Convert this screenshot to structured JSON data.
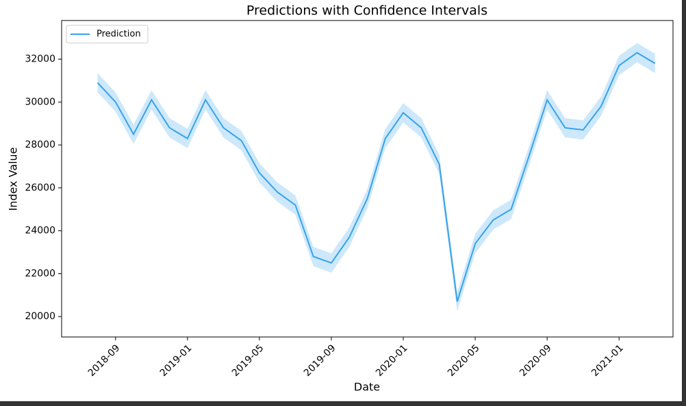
{
  "chart_data": {
    "type": "line",
    "title": "Predictions with Confidence Intervals",
    "x_label": "Date",
    "y_label": "Index Value",
    "x": [
      "2018-08",
      "2018-09",
      "2018-10",
      "2018-11",
      "2018-12",
      "2019-01",
      "2019-02",
      "2019-03",
      "2019-04",
      "2019-05",
      "2019-06",
      "2019-07",
      "2019-08",
      "2019-09",
      "2019-10",
      "2019-11",
      "2019-12",
      "2020-01",
      "2020-02",
      "2020-03",
      "2020-04",
      "2020-05",
      "2020-06",
      "2020-07",
      "2020-08",
      "2020-09",
      "2020-10",
      "2020-11",
      "2020-12",
      "2021-01",
      "2021-02",
      "2021-03"
    ],
    "series": [
      {
        "name": "Prediction",
        "color": "#36a2eb",
        "values": [
          30900,
          30000,
          28500,
          30100,
          28800,
          28300,
          30100,
          28800,
          28200,
          26700,
          25800,
          25200,
          22800,
          22500,
          23700,
          25500,
          28300,
          29500,
          28800,
          27100,
          20700,
          23400,
          24500,
          25000,
          27500,
          30100,
          28800,
          28700,
          29800,
          31700,
          32300,
          31800
        ],
        "ci_lower": [
          30450,
          29550,
          28050,
          29650,
          28350,
          27850,
          29650,
          28350,
          27750,
          26250,
          25350,
          24750,
          22350,
          22050,
          23250,
          25050,
          27850,
          29050,
          28350,
          26650,
          20250,
          22950,
          24050,
          24550,
          27050,
          29650,
          28350,
          28250,
          29350,
          31250,
          31850,
          31350
        ],
        "ci_upper": [
          31350,
          30450,
          28950,
          30550,
          29250,
          28750,
          30550,
          29250,
          28650,
          27150,
          26250,
          25650,
          23250,
          22950,
          24150,
          25950,
          28750,
          29950,
          29250,
          27550,
          21150,
          23850,
          24950,
          25450,
          27950,
          30550,
          29250,
          29150,
          30250,
          32150,
          32750,
          32250
        ]
      }
    ],
    "xlim": [
      "2018-06",
      "2021-04"
    ],
    "xticks": [
      "2018-09",
      "2019-01",
      "2019-05",
      "2019-09",
      "2020-01",
      "2020-05",
      "2020-09",
      "2021-01"
    ],
    "ylim": [
      19050,
      33800
    ],
    "yticks": [
      20000,
      22000,
      24000,
      26000,
      28000,
      30000,
      32000
    ],
    "legend": "upper-left"
  }
}
